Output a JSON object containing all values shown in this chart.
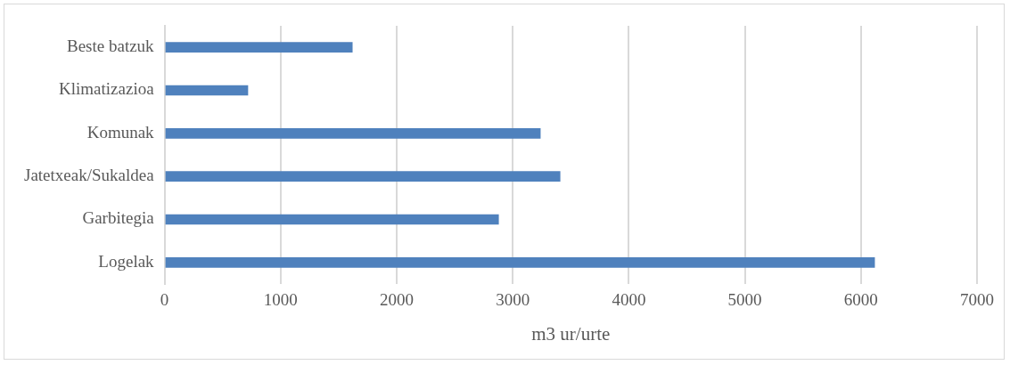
{
  "chart_data": {
    "type": "bar",
    "orientation": "horizontal",
    "xlabel": "m3 ur/urte",
    "categories": [
      "Beste batzuk",
      "Klimatizazioa",
      "Komunak",
      "Jatetxeak/Sukaldea",
      "Garbitegia",
      "Logelak"
    ],
    "values": [
      1620,
      720,
      3240,
      3410,
      2880,
      6120
    ],
    "color": "#4f81bd",
    "xlim": [
      0,
      7000
    ],
    "xticks": [
      0,
      1000,
      2000,
      3000,
      4000,
      5000,
      6000,
      7000
    ],
    "grid": "x",
    "legend": false
  }
}
